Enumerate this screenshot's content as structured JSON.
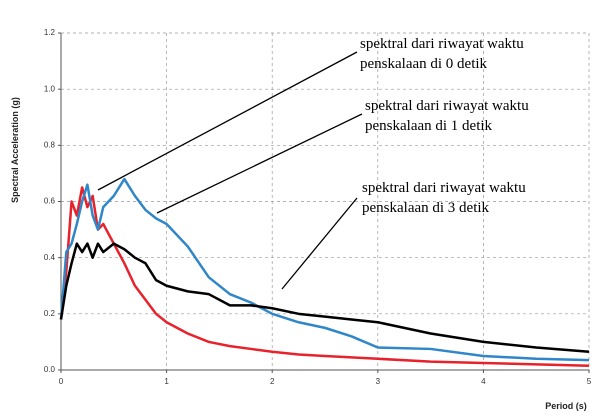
{
  "chart_data": {
    "type": "line",
    "x_label": "Period (s)",
    "y_label": "Spectral Acceleration (g)",
    "x": [
      0,
      0.05,
      0.1,
      0.15,
      0.2,
      0.25,
      0.3,
      0.35,
      0.4,
      0.5,
      0.6,
      0.7,
      0.8,
      0.9,
      1.0,
      1.2,
      1.4,
      1.6,
      1.8,
      2.0,
      2.25,
      2.5,
      2.75,
      3.0,
      3.5,
      4.0,
      4.5,
      5.0
    ],
    "series": [
      {
        "color": "#e8222b",
        "values": [
          0.18,
          0.35,
          0.6,
          0.55,
          0.65,
          0.58,
          0.62,
          0.5,
          0.52,
          0.45,
          0.38,
          0.3,
          0.25,
          0.2,
          0.17,
          0.13,
          0.1,
          0.085,
          0.075,
          0.065,
          0.055,
          0.05,
          0.045,
          0.04,
          0.03,
          0.025,
          0.02,
          0.015
        ]
      },
      {
        "color": "#2f86c8",
        "values": [
          0.18,
          0.42,
          0.45,
          0.52,
          0.6,
          0.66,
          0.55,
          0.5,
          0.58,
          0.62,
          0.68,
          0.62,
          0.57,
          0.54,
          0.52,
          0.44,
          0.33,
          0.27,
          0.24,
          0.2,
          0.17,
          0.15,
          0.12,
          0.08,
          0.075,
          0.05,
          0.04,
          0.035
        ]
      },
      {
        "color": "#000000",
        "values": [
          0.18,
          0.3,
          0.38,
          0.45,
          0.42,
          0.45,
          0.4,
          0.45,
          0.42,
          0.45,
          0.43,
          0.4,
          0.38,
          0.32,
          0.3,
          0.28,
          0.27,
          0.23,
          0.23,
          0.22,
          0.2,
          0.19,
          0.18,
          0.17,
          0.13,
          0.1,
          0.08,
          0.065
        ]
      }
    ],
    "xlim": [
      0,
      5
    ],
    "xticks": [
      0,
      1,
      2,
      3,
      4,
      5
    ],
    "ylim": [
      0,
      1.2
    ],
    "yticks": [
      {
        "value": 0,
        "label": "0.0"
      },
      {
        "value": 0.2,
        "label": "0.2"
      },
      {
        "value": 0.4,
        "label": "0.4"
      },
      {
        "value": 0.6,
        "label": "0.6"
      },
      {
        "value": 0.8,
        "label": "0.8"
      },
      {
        "value": 1,
        "label": "1.0"
      },
      {
        "value": 1.2,
        "label": "1.2"
      }
    ],
    "grid": true,
    "annotations": [
      {
        "lines": [
          "spektral dari riwayat waktu",
          "penskalaan di 0 detik"
        ]
      },
      {
        "lines": [
          "spektral dari riwayat waktu",
          "penskalaan di 1 detik"
        ]
      },
      {
        "lines": [
          "spektral dari riwayat waktu",
          "penskalaan di 3 detik"
        ]
      }
    ]
  }
}
